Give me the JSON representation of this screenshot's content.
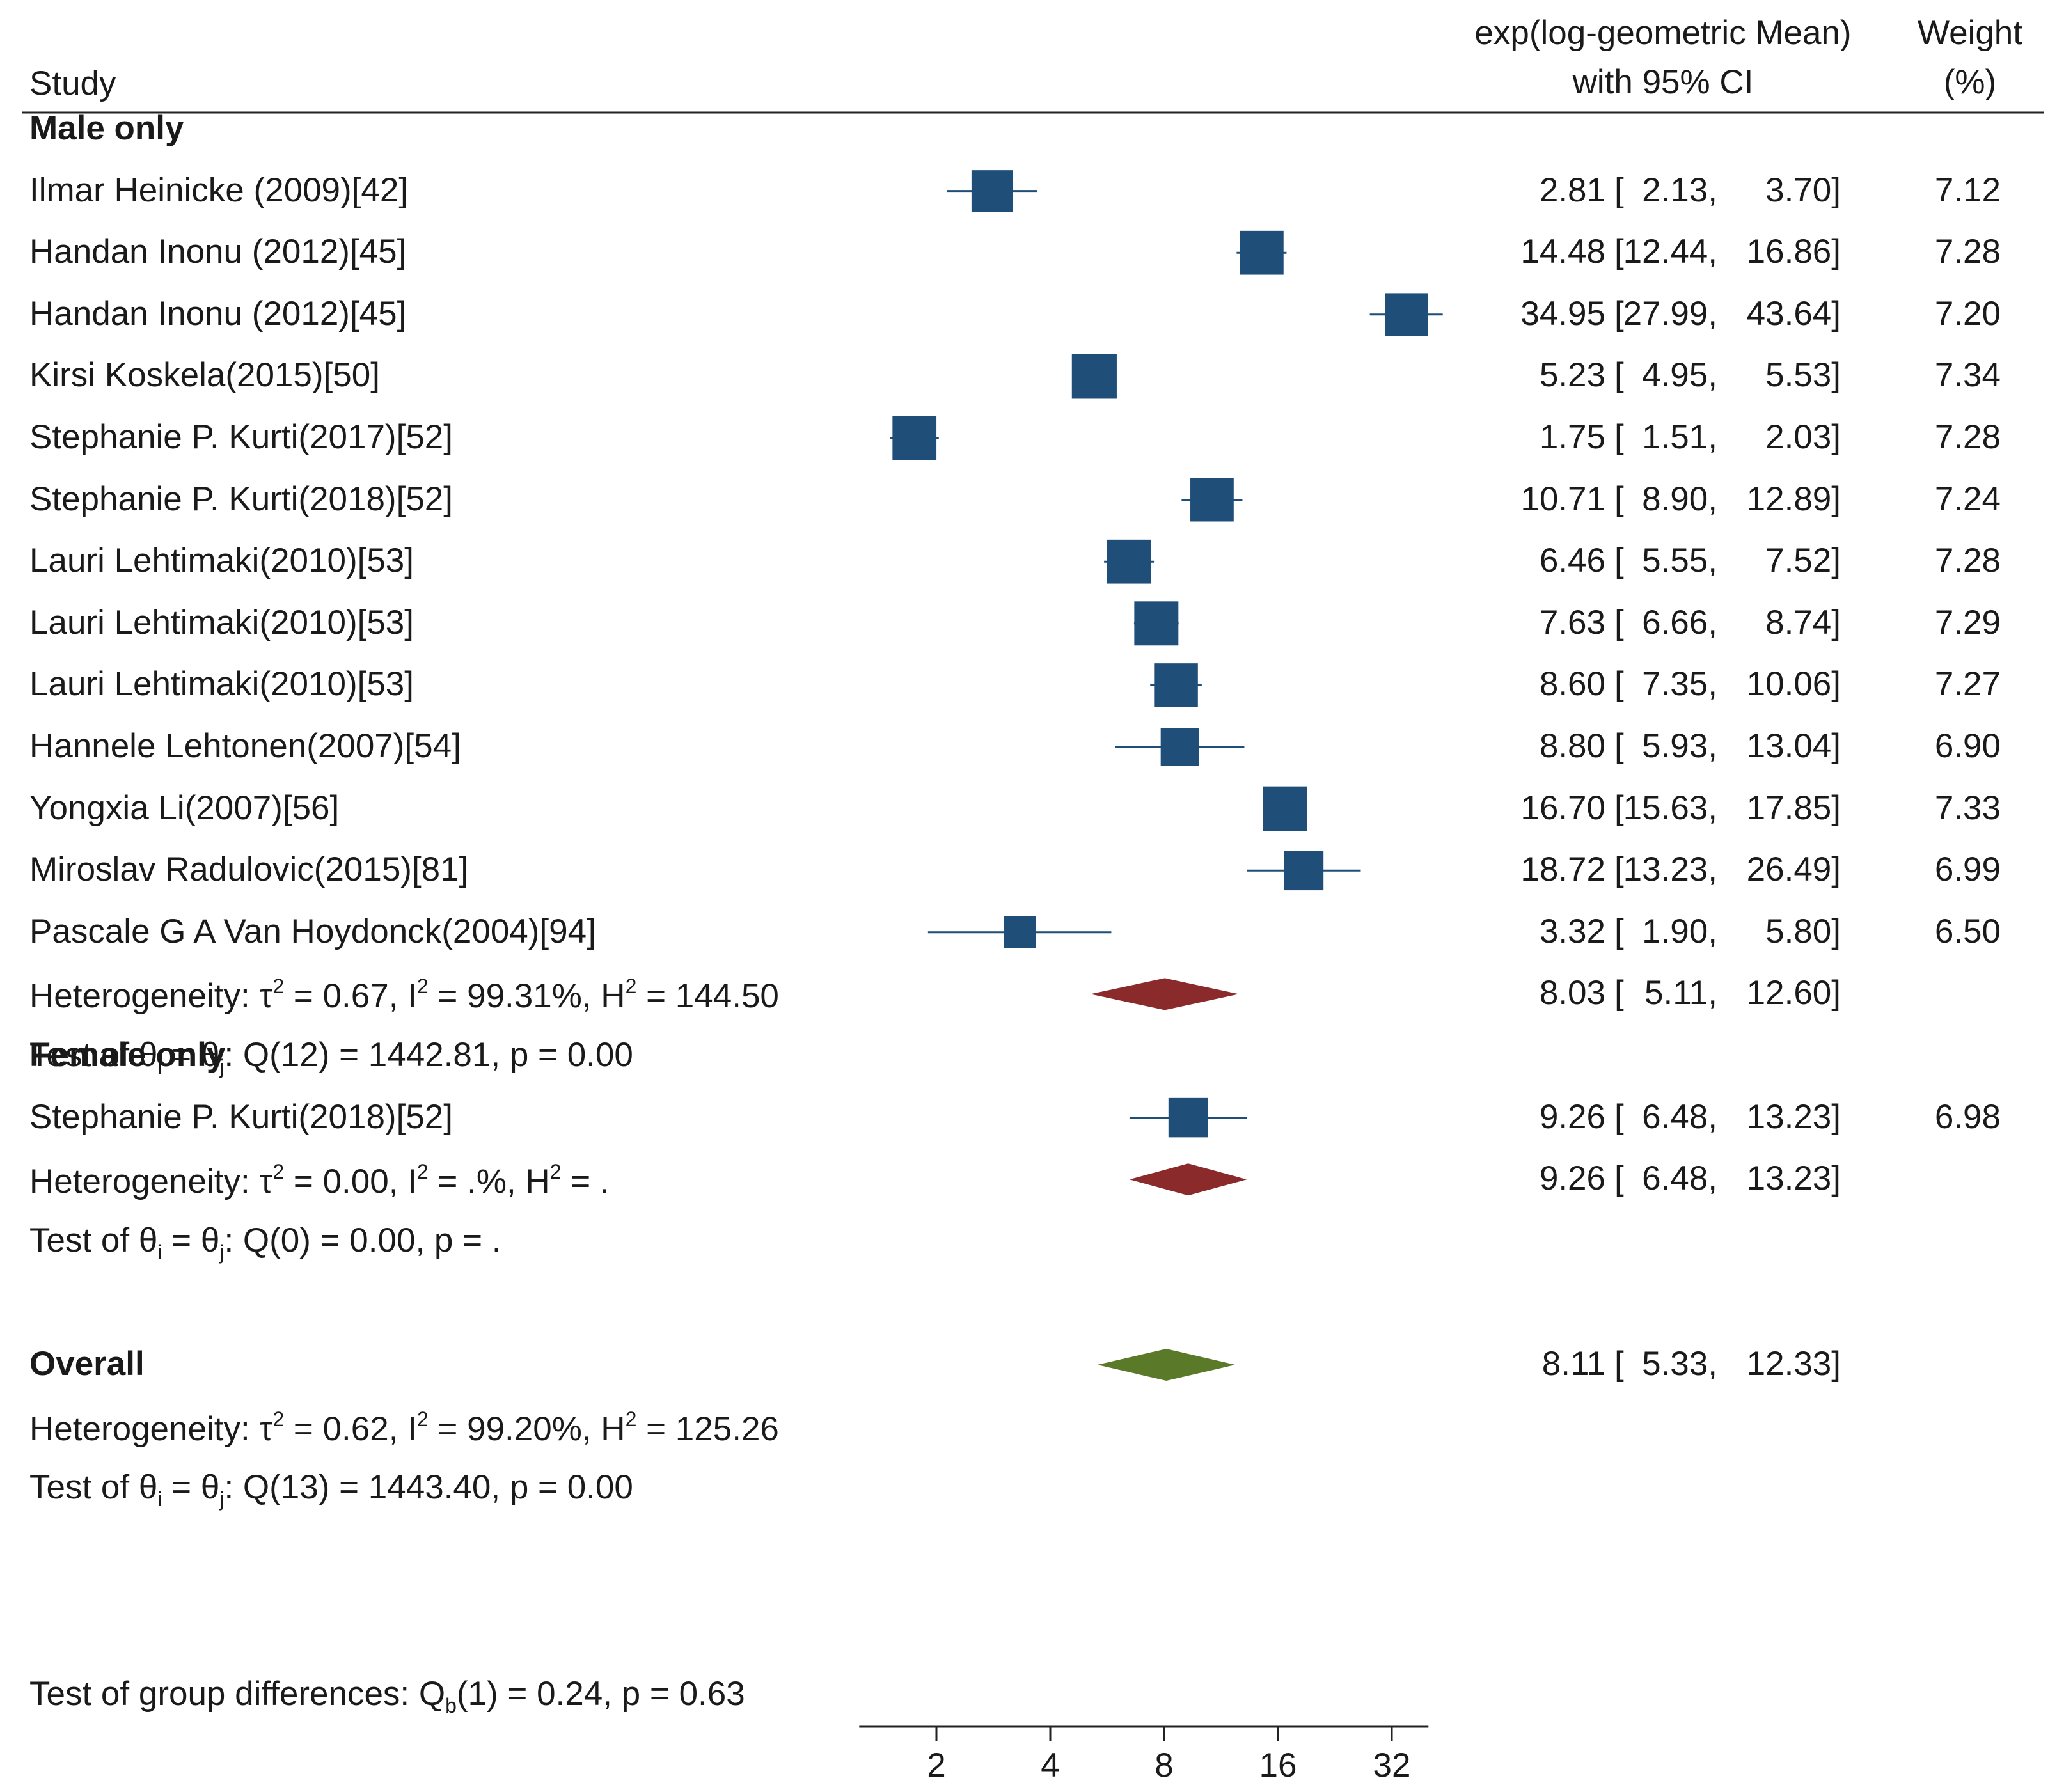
{
  "header": {
    "study": "Study",
    "effect_line1": "exp(log-geometric Mean)",
    "effect_line2": "with 95% CI",
    "weight_line1": "Weight",
    "weight_line2": "(%)"
  },
  "chart_data": {
    "type": "forest",
    "scale": "log2",
    "xlim": [
      1.25,
      40
    ],
    "ticks": [
      2,
      4,
      8,
      16,
      32
    ],
    "tick_labels": [
      "2",
      "4",
      "8",
      "16",
      "32"
    ],
    "colors": {
      "study": "#1f4e79",
      "subgroup_diamond": "#8b2a2a",
      "overall_diamond": "#5a7a2a",
      "axis": "#222222"
    },
    "groups": [
      {
        "name": "Male only",
        "studies": [
          {
            "label": "Ilmar Heinicke (2009)[42]",
            "est": 2.81,
            "lo": 2.13,
            "hi": 3.7,
            "weight": 7.12,
            "est_txt": "2.81",
            "lo_txt": "2.13,",
            "hi_txt": "3.70]",
            "weight_txt": "7.12"
          },
          {
            "label": "Handan Inonu (2012)[45]",
            "est": 14.48,
            "lo": 12.44,
            "hi": 16.86,
            "weight": 7.28,
            "est_txt": "14.48",
            "lo_txt": "12.44,",
            "hi_txt": "16.86]",
            "weight_txt": "7.28"
          },
          {
            "label": "Handan Inonu (2012)[45]",
            "est": 34.95,
            "lo": 27.99,
            "hi": 43.64,
            "weight": 7.2,
            "est_txt": "34.95",
            "lo_txt": "27.99,",
            "hi_txt": "43.64]",
            "weight_txt": "7.20"
          },
          {
            "label": "Kirsi Koskela(2015)[50]",
            "est": 5.23,
            "lo": 4.95,
            "hi": 5.53,
            "weight": 7.34,
            "est_txt": "5.23",
            "lo_txt": "4.95,",
            "hi_txt": "5.53]",
            "weight_txt": "7.34"
          },
          {
            "label": "Stephanie P. Kurti(2017)[52]",
            "est": 1.75,
            "lo": 1.51,
            "hi": 2.03,
            "weight": 7.28,
            "est_txt": "1.75",
            "lo_txt": "1.51,",
            "hi_txt": "2.03]",
            "weight_txt": "7.28"
          },
          {
            "label": "Stephanie P. Kurti(2018)[52]",
            "est": 10.71,
            "lo": 8.9,
            "hi": 12.89,
            "weight": 7.24,
            "est_txt": "10.71",
            "lo_txt": "8.90,",
            "hi_txt": "12.89]",
            "weight_txt": "7.24"
          },
          {
            "label": "Lauri Lehtimaki(2010)[53]",
            "est": 6.46,
            "lo": 5.55,
            "hi": 7.52,
            "weight": 7.28,
            "est_txt": "6.46",
            "lo_txt": "5.55,",
            "hi_txt": "7.52]",
            "weight_txt": "7.28"
          },
          {
            "label": "Lauri Lehtimaki(2010)[53]",
            "est": 7.63,
            "lo": 6.66,
            "hi": 8.74,
            "weight": 7.29,
            "est_txt": "7.63",
            "lo_txt": "6.66,",
            "hi_txt": "8.74]",
            "weight_txt": "7.29"
          },
          {
            "label": "Lauri Lehtimaki(2010)[53]",
            "est": 8.6,
            "lo": 7.35,
            "hi": 10.06,
            "weight": 7.27,
            "est_txt": "8.60",
            "lo_txt": "7.35,",
            "hi_txt": "10.06]",
            "weight_txt": "7.27"
          },
          {
            "label": "Hannele Lehtonen(2007)[54]",
            "est": 8.8,
            "lo": 5.93,
            "hi": 13.04,
            "weight": 6.9,
            "est_txt": "8.80",
            "lo_txt": "5.93,",
            "hi_txt": "13.04]",
            "weight_txt": "6.90"
          },
          {
            "label": "Yongxia Li(2007)[56]",
            "est": 16.7,
            "lo": 15.63,
            "hi": 17.85,
            "weight": 7.33,
            "est_txt": "16.70",
            "lo_txt": "15.63,",
            "hi_txt": "17.85]",
            "weight_txt": "7.33"
          },
          {
            "label": "Miroslav Radulovic(2015)[81]",
            "est": 18.72,
            "lo": 13.23,
            "hi": 26.49,
            "weight": 6.99,
            "est_txt": "18.72",
            "lo_txt": "13.23,",
            "hi_txt": "26.49]",
            "weight_txt": "6.99"
          },
          {
            "label": "Pascale G A Van Hoydonck(2004)[94]",
            "est": 3.32,
            "lo": 1.9,
            "hi": 5.8,
            "weight": 6.5,
            "est_txt": "3.32",
            "lo_txt": "1.90,",
            "hi_txt": "5.80]",
            "weight_txt": "6.50"
          }
        ],
        "summary": {
          "est": 8.03,
          "lo": 5.11,
          "hi": 12.6,
          "est_txt": "8.03",
          "lo_txt": "5.11,",
          "hi_txt": "12.60]",
          "het": {
            "p1": "Heterogeneity: τ",
            "s1": "2",
            "p2": " = 0.67, I",
            "s2": "2",
            "p3": " = 99.31%, H",
            "s3": "2",
            "p4": " = 144.50"
          },
          "test": {
            "p1": "Test of θ",
            "s1": "i",
            "p2": " = θ",
            "s2": "j",
            "p3": ": Q(12) = 1442.81, p = 0.00"
          }
        }
      },
      {
        "name": "Female only",
        "studies": [
          {
            "label": "Stephanie P. Kurti(2018)[52]",
            "est": 9.26,
            "lo": 6.48,
            "hi": 13.23,
            "weight": 6.98,
            "est_txt": "9.26",
            "lo_txt": "6.48,",
            "hi_txt": "13.23]",
            "weight_txt": "6.98"
          }
        ],
        "summary": {
          "est": 9.26,
          "lo": 6.48,
          "hi": 13.23,
          "est_txt": "9.26",
          "lo_txt": "6.48,",
          "hi_txt": "13.23]",
          "het": {
            "p1": "Heterogeneity: τ",
            "s1": "2",
            "p2": " = 0.00, I",
            "s2": "2",
            "p3": " = .%, H",
            "s3": "2",
            "p4": " = ."
          },
          "test": {
            "p1": "Test of θ",
            "s1": "i",
            "p2": " = θ",
            "s2": "j",
            "p3": ": Q(0) = 0.00, p = ."
          }
        }
      }
    ],
    "overall": {
      "name": "Overall",
      "est": 8.11,
      "lo": 5.33,
      "hi": 12.33,
      "est_txt": "8.11",
      "lo_txt": "5.33,",
      "hi_txt": "12.33]",
      "het": {
        "p1": "Heterogeneity: τ",
        "s1": "2",
        "p2": " = 0.62, I",
        "s2": "2",
        "p3": " = 99.20%, H",
        "s3": "2",
        "p4": " = 125.26"
      },
      "test": {
        "p1": "Test of θ",
        "s1": "i",
        "p2": " = θ",
        "s2": "j",
        "p3": ": Q(13) = 1443.40, p = 0.00"
      },
      "group_test": {
        "p1": "Test of group differences: Q",
        "s1": "b",
        "p2": "(1) = 0.24, p = 0.63"
      }
    }
  }
}
